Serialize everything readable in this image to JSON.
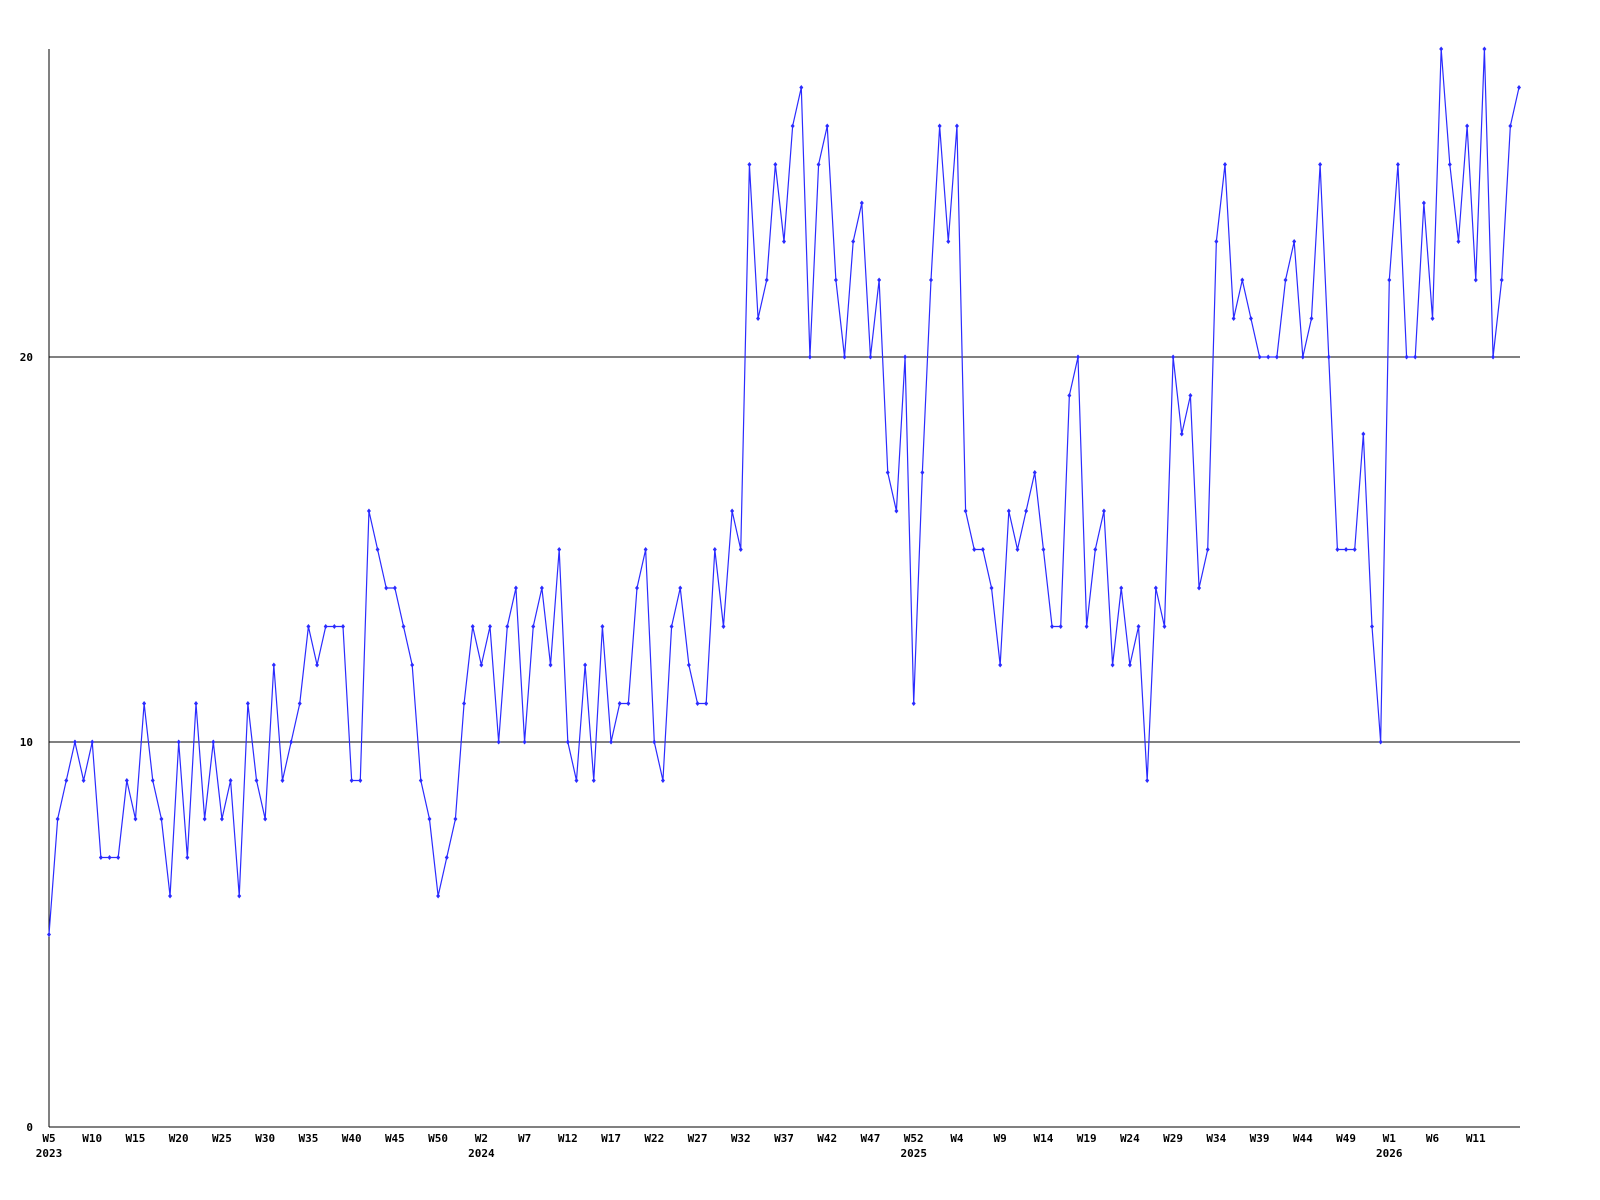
{
  "chart_data": {
    "type": "line",
    "color": "#2b2bff",
    "grid": true,
    "ylim": [
      0,
      28
    ],
    "yticks": [
      0,
      10,
      20
    ],
    "categories": [
      "W5",
      null,
      null,
      null,
      null,
      "W10",
      null,
      null,
      null,
      null,
      "W15",
      null,
      null,
      null,
      null,
      "W20",
      null,
      null,
      null,
      null,
      "W25",
      null,
      null,
      null,
      null,
      "W30",
      null,
      null,
      null,
      null,
      "W35",
      null,
      null,
      null,
      null,
      "W40",
      null,
      null,
      null,
      null,
      "W45",
      null,
      null,
      null,
      null,
      "W50",
      null,
      null,
      null,
      null,
      "W2",
      null,
      null,
      null,
      null,
      "W7",
      null,
      null,
      null,
      null,
      "W12",
      null,
      null,
      null,
      null,
      "W17",
      null,
      null,
      null,
      null,
      "W22",
      null,
      null,
      null,
      null,
      "W27",
      null,
      null,
      null,
      null,
      "W32",
      null,
      null,
      null,
      null,
      "W37",
      null,
      null,
      null,
      null,
      "W42",
      null,
      null,
      null,
      null,
      "W47",
      null,
      null,
      null,
      null,
      "W52",
      null,
      null,
      null,
      null,
      "W4",
      null,
      null,
      null,
      null,
      "W9",
      null,
      null,
      null,
      null,
      "W14",
      null,
      null,
      null,
      null,
      "W19",
      null,
      null,
      null,
      null,
      "W24",
      null,
      null,
      null,
      null,
      "W29",
      null,
      null,
      null,
      null,
      "W34",
      null,
      null,
      null,
      null,
      "W39",
      null,
      null,
      null,
      null,
      "W44",
      null,
      null,
      null,
      null,
      "W49",
      null,
      null,
      null,
      null,
      "W1",
      null,
      null,
      null,
      null,
      "W6",
      null,
      null,
      null,
      null,
      "W11",
      null,
      null,
      null,
      null,
      null
    ],
    "values": [
      5,
      8,
      9,
      10,
      9,
      10,
      7,
      7,
      7,
      9,
      8,
      11,
      9,
      8,
      6,
      10,
      7,
      11,
      8,
      10,
      8,
      9,
      6,
      11,
      9,
      8,
      12,
      9,
      10,
      11,
      13,
      12,
      13,
      13,
      13,
      9,
      9,
      16,
      15,
      14,
      14,
      13,
      12,
      9,
      8,
      6,
      7,
      8,
      11,
      13,
      12,
      13,
      10,
      13,
      14,
      10,
      13,
      14,
      12,
      15,
      10,
      9,
      12,
      9,
      13,
      10,
      11,
      11,
      14,
      15,
      10,
      9,
      13,
      14,
      12,
      11,
      11,
      15,
      13,
      16,
      15,
      25,
      21,
      22,
      25,
      23,
      26,
      27,
      20,
      25,
      26,
      22,
      20,
      23,
      24,
      20,
      22,
      17,
      16,
      20,
      11,
      17,
      22,
      26,
      23,
      26,
      16,
      15,
      15,
      14,
      12,
      16,
      15,
      16,
      17,
      15,
      13,
      13,
      19,
      20,
      13,
      15,
      16,
      12,
      14,
      12,
      13,
      9,
      14,
      13,
      20,
      18,
      19,
      14,
      15,
      23,
      25,
      21,
      22,
      21,
      20,
      20,
      20,
      22,
      23,
      20,
      21,
      25,
      20,
      15,
      15,
      15,
      18,
      13,
      10,
      22,
      25,
      20,
      20,
      24,
      21,
      28,
      25,
      23,
      26,
      22,
      28,
      20,
      22,
      26,
      27
    ],
    "years": [
      {
        "text": "2023",
        "category": "W5"
      },
      {
        "text": "2024",
        "category": "W2"
      },
      {
        "text": "2025",
        "category": "W52"
      },
      {
        "text": "2026",
        "category": "W1"
      }
    ]
  }
}
